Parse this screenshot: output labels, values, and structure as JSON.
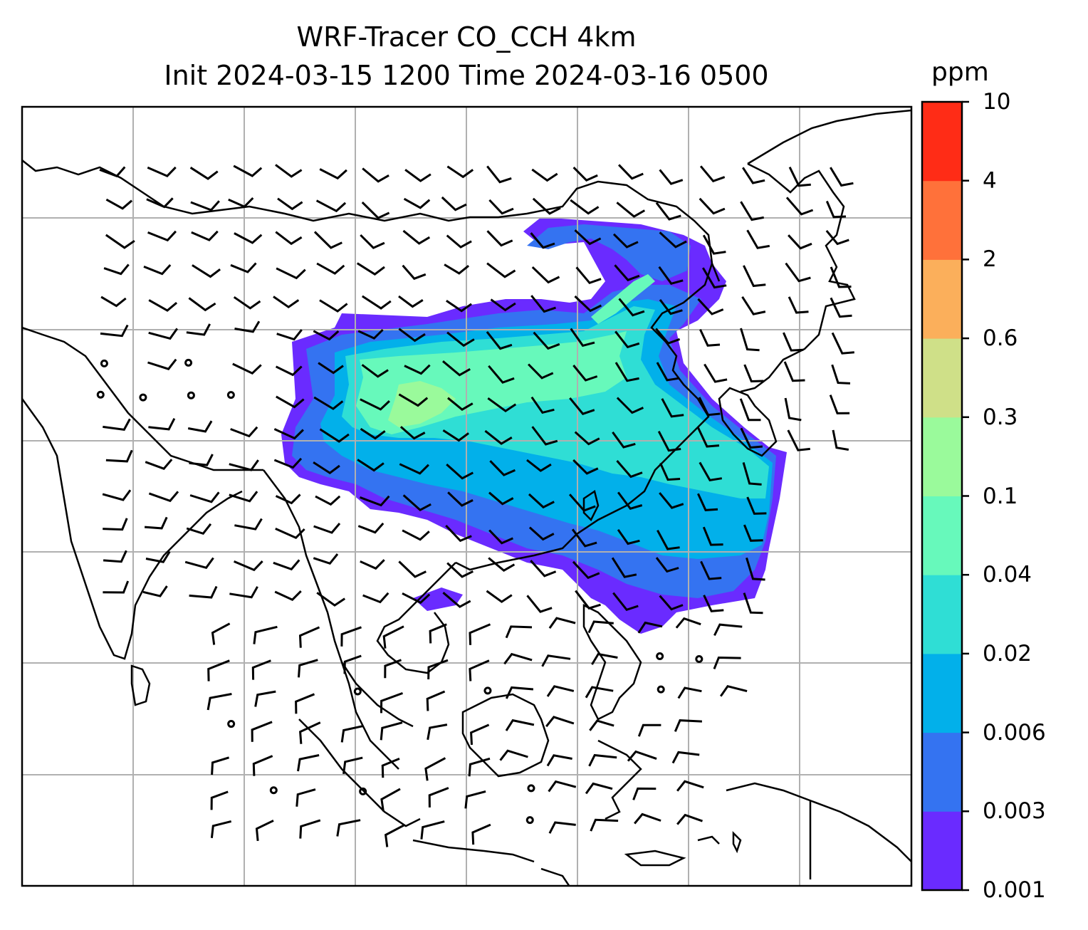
{
  "title_line1": "WRF-Tracer CO_CCH 4km",
  "title_line2": "Init 2024-03-15 1200 Time 2024-03-16 0500",
  "colorbar": {
    "unit": "ppm",
    "ticks": [
      "0.001",
      "0.003",
      "0.006",
      "0.02",
      "0.04",
      "0.1",
      "0.3",
      "0.6",
      "2",
      "4",
      "10"
    ],
    "colors": [
      "#6a2bff",
      "#3473f1",
      "#02b0ea",
      "#2fded5",
      "#67f9bb",
      "#9afa9b",
      "#cfe088",
      "#fbaf5b",
      "#ff713a",
      "#ff2c16"
    ]
  },
  "map": {
    "projection": "Mercator, East Asia to Maritime Southeast Asia",
    "gridlines": true,
    "wind_barbs": true,
    "coastlines_color": "#000000"
  }
}
